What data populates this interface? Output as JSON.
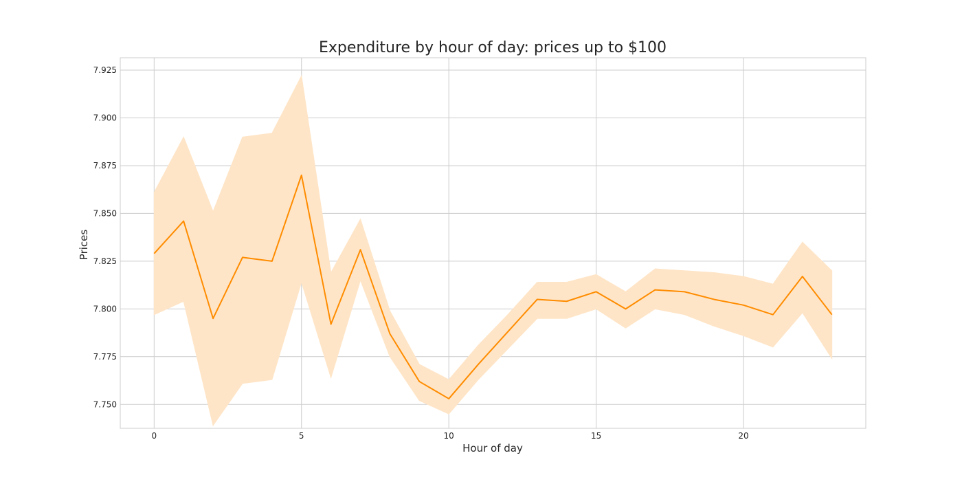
{
  "chart_data": {
    "type": "line",
    "title": "Expenditure by hour of day: prices up to $100",
    "xlabel": "Hour of day",
    "ylabel": "Prices",
    "xlim": [
      -1.15,
      24.15
    ],
    "ylim": [
      7.7375,
      7.9315
    ],
    "x_ticks": [
      0,
      5,
      10,
      15,
      20
    ],
    "y_ticks": [
      7.75,
      7.775,
      7.8,
      7.825,
      7.85,
      7.875,
      7.9,
      7.925
    ],
    "y_tick_labels": [
      "7.750",
      "7.775",
      "7.800",
      "7.825",
      "7.850",
      "7.875",
      "7.900",
      "7.925"
    ],
    "grid": true,
    "legend": "none",
    "series": [
      {
        "color": "#ff8c00",
        "band_color": "#ffe5c7",
        "x": [
          0,
          1,
          2,
          3,
          4,
          5,
          6,
          7,
          8,
          9,
          10,
          11,
          12,
          13,
          14,
          15,
          16,
          17,
          18,
          19,
          20,
          21,
          22,
          23
        ],
        "values": [
          7.829,
          7.846,
          7.795,
          7.827,
          7.825,
          7.87,
          7.792,
          7.831,
          7.787,
          7.762,
          7.753,
          7.771,
          7.788,
          7.805,
          7.804,
          7.809,
          7.8,
          7.81,
          7.809,
          7.805,
          7.802,
          7.797,
          7.817,
          7.797
        ],
        "ci_low": [
          7.797,
          7.804,
          7.739,
          7.761,
          7.763,
          7.814,
          7.764,
          7.815,
          7.775,
          7.752,
          7.745,
          7.763,
          7.779,
          7.795,
          7.795,
          7.8,
          7.79,
          7.8,
          7.797,
          7.791,
          7.786,
          7.78,
          7.798,
          7.774
        ],
        "ci_high": [
          7.861,
          7.89,
          7.851,
          7.89,
          7.892,
          7.922,
          7.819,
          7.847,
          7.799,
          7.771,
          7.763,
          7.781,
          7.797,
          7.814,
          7.814,
          7.818,
          7.809,
          7.821,
          7.82,
          7.819,
          7.817,
          7.813,
          7.835,
          7.82
        ]
      }
    ]
  }
}
